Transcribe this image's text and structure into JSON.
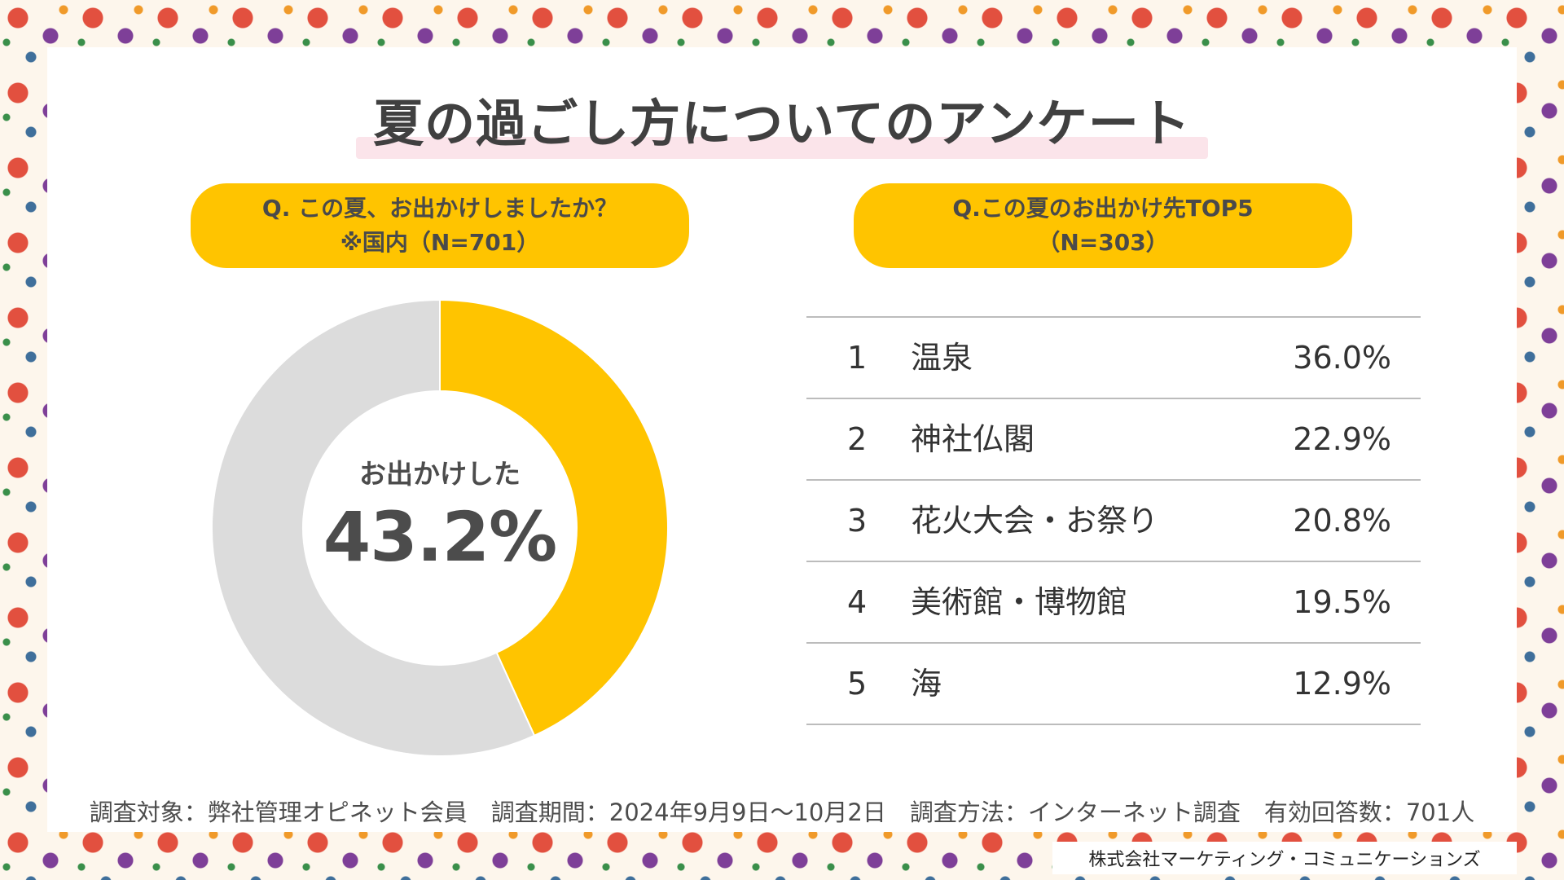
{
  "title": "夏の過ごし方についてのアンケート",
  "left_question": {
    "line1": "Q. この夏、お出かけしましたか？",
    "line2": "※国内（N=701）"
  },
  "right_question": {
    "line1": "Q.この夏のお出かけ先TOP5",
    "line2": "（N=303）"
  },
  "donut": {
    "center_label": "お出かけした",
    "center_value": "43.2%"
  },
  "colors": {
    "accent": "#ffc400",
    "remainder": "#dcdcdc",
    "title_underline": "#fbe4ea",
    "text": "#404040"
  },
  "chart_data": [
    {
      "type": "pie",
      "donut": true,
      "title": "Q. この夏、お出かけしましたか？",
      "subtitle": "※国内（N=701）",
      "slices": [
        {
          "label": "お出かけした",
          "value": 43.2,
          "color": "#ffc400"
        },
        {
          "value": 56.8,
          "color": "#dcdcdc"
        }
      ]
    },
    {
      "type": "table",
      "title": "Q.この夏のお出かけ先TOP5",
      "subtitle": "（N=303）",
      "rows": [
        {
          "rank": "1",
          "place": "温泉",
          "percent": "36.0%"
        },
        {
          "rank": "2",
          "place": "神社仏閣",
          "percent": "22.9%"
        },
        {
          "rank": "3",
          "place": "花火大会・お祭り",
          "percent": "20.8%"
        },
        {
          "rank": "4",
          "place": "美術館・博物館",
          "percent": "19.5%"
        },
        {
          "rank": "5",
          "place": "海",
          "percent": "12.9%"
        }
      ]
    }
  ],
  "footer": {
    "survey_note": "調査対象：弊社管理オピネット会員　調査期間：2024年9月9日〜10月2日　調査方法：インターネット調査　有効回答数：701人",
    "company": "株式会社マーケティング・コミュニケーションズ"
  }
}
